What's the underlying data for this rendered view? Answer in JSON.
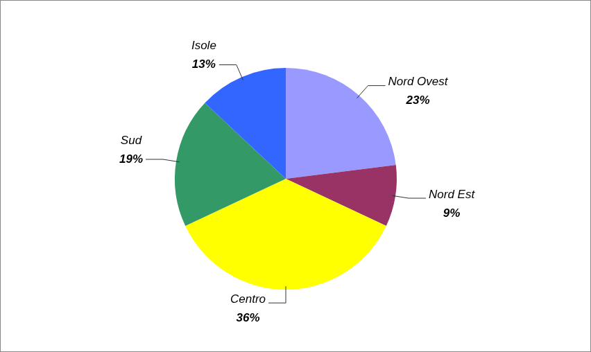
{
  "chart_data": {
    "type": "pie",
    "categories": [
      "Nord Ovest",
      "Nord Est",
      "Centro",
      "Sud",
      "Isole"
    ],
    "values": [
      23,
      9,
      36,
      19,
      13
    ],
    "value_labels": [
      "23%",
      "9%",
      "36%",
      "19%",
      "13%"
    ],
    "colors": [
      "#9999ff",
      "#993366",
      "#ffff00",
      "#339966",
      "#3366ff"
    ],
    "data_labels": true
  }
}
